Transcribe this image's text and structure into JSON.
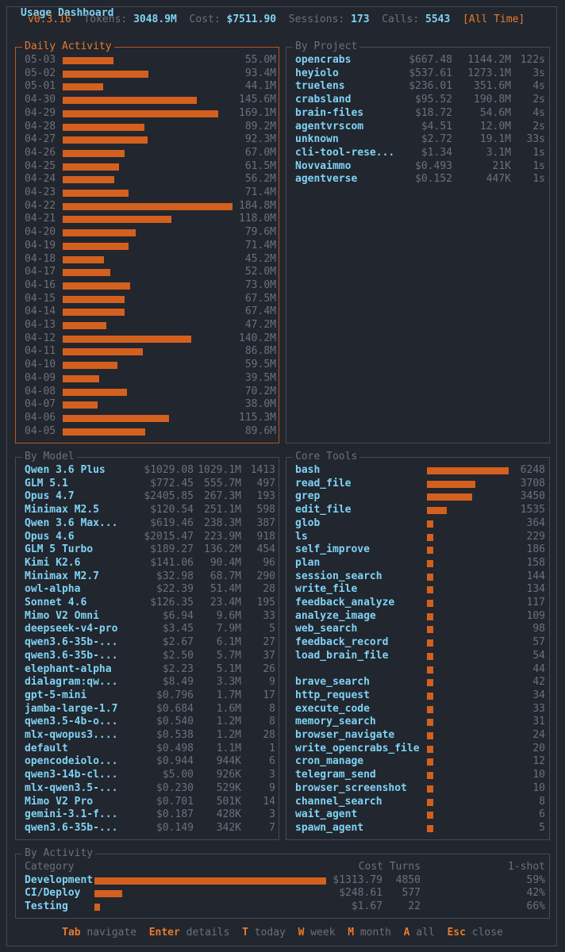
{
  "title": "Usage Dashboard",
  "stats": {
    "version": "v0.3.16",
    "tokens_label": "Tokens:",
    "tokens_value": "3048.9M",
    "cost_label": "Cost:",
    "cost_value": "$7511.90",
    "sessions_label": "Sessions:",
    "sessions_value": "173",
    "calls_label": "Calls:",
    "calls_value": "5543",
    "range": "[All Time]"
  },
  "daily": {
    "title": "Daily Activity",
    "rows": [
      {
        "date": "05-03",
        "value": "55.0M",
        "tokens_m": 55.0
      },
      {
        "date": "05-02",
        "value": "93.4M",
        "tokens_m": 93.4
      },
      {
        "date": "05-01",
        "value": "44.1M",
        "tokens_m": 44.1
      },
      {
        "date": "04-30",
        "value": "145.6M",
        "tokens_m": 145.6
      },
      {
        "date": "04-29",
        "value": "169.1M",
        "tokens_m": 169.1
      },
      {
        "date": "04-28",
        "value": "89.2M",
        "tokens_m": 89.2
      },
      {
        "date": "04-27",
        "value": "92.3M",
        "tokens_m": 92.3
      },
      {
        "date": "04-26",
        "value": "67.0M",
        "tokens_m": 67.0
      },
      {
        "date": "04-25",
        "value": "61.5M",
        "tokens_m": 61.5
      },
      {
        "date": "04-24",
        "value": "56.2M",
        "tokens_m": 56.2
      },
      {
        "date": "04-23",
        "value": "71.4M",
        "tokens_m": 71.4
      },
      {
        "date": "04-22",
        "value": "184.8M",
        "tokens_m": 184.8
      },
      {
        "date": "04-21",
        "value": "118.0M",
        "tokens_m": 118.0
      },
      {
        "date": "04-20",
        "value": "79.6M",
        "tokens_m": 79.6
      },
      {
        "date": "04-19",
        "value": "71.4M",
        "tokens_m": 71.4
      },
      {
        "date": "04-18",
        "value": "45.2M",
        "tokens_m": 45.2
      },
      {
        "date": "04-17",
        "value": "52.0M",
        "tokens_m": 52.0
      },
      {
        "date": "04-16",
        "value": "73.0M",
        "tokens_m": 73.0
      },
      {
        "date": "04-15",
        "value": "67.5M",
        "tokens_m": 67.5
      },
      {
        "date": "04-14",
        "value": "67.4M",
        "tokens_m": 67.4
      },
      {
        "date": "04-13",
        "value": "47.2M",
        "tokens_m": 47.2
      },
      {
        "date": "04-12",
        "value": "140.2M",
        "tokens_m": 140.2
      },
      {
        "date": "04-11",
        "value": "86.8M",
        "tokens_m": 86.8
      },
      {
        "date": "04-10",
        "value": "59.5M",
        "tokens_m": 59.5
      },
      {
        "date": "04-09",
        "value": "39.5M",
        "tokens_m": 39.5
      },
      {
        "date": "04-08",
        "value": "70.2M",
        "tokens_m": 70.2
      },
      {
        "date": "04-07",
        "value": "38.0M",
        "tokens_m": 38.0
      },
      {
        "date": "04-06",
        "value": "115.3M",
        "tokens_m": 115.3
      },
      {
        "date": "04-05",
        "value": "89.6M",
        "tokens_m": 89.6
      }
    ]
  },
  "projects": {
    "title": "By Project",
    "rows": [
      {
        "name": "opencrabs",
        "cost": "$667.48",
        "tokens": "1144.2M",
        "time": "122s"
      },
      {
        "name": "heyiolo",
        "cost": "$537.61",
        "tokens": "1273.1M",
        "time": "3s"
      },
      {
        "name": "truelens",
        "cost": "$236.01",
        "tokens": "351.6M",
        "time": "4s"
      },
      {
        "name": "crabsland",
        "cost": "$95.52",
        "tokens": "190.8M",
        "time": "2s"
      },
      {
        "name": "brain-files",
        "cost": "$18.72",
        "tokens": "54.6M",
        "time": "4s"
      },
      {
        "name": "agentvrscom",
        "cost": "$4.51",
        "tokens": "12.0M",
        "time": "2s"
      },
      {
        "name": "unknown",
        "cost": "$2.72",
        "tokens": "19.1M",
        "time": "33s"
      },
      {
        "name": "cli-tool-rese...",
        "cost": "$1.34",
        "tokens": "3.1M",
        "time": "1s"
      },
      {
        "name": "Novvaimmo",
        "cost": "$0.493",
        "tokens": "21K",
        "time": "1s"
      },
      {
        "name": "agentverse",
        "cost": "$0.152",
        "tokens": "447K",
        "time": "1s"
      }
    ]
  },
  "models": {
    "title": "By Model",
    "rows": [
      {
        "name": "Qwen 3.6 Plus",
        "cost": "$1029.08",
        "tokens": "1029.1M",
        "calls": "1413"
      },
      {
        "name": "GLM 5.1",
        "cost": "$772.45",
        "tokens": "555.7M",
        "calls": "497"
      },
      {
        "name": "Opus 4.7",
        "cost": "$2405.85",
        "tokens": "267.3M",
        "calls": "193"
      },
      {
        "name": "Minimax M2.5",
        "cost": "$120.54",
        "tokens": "251.1M",
        "calls": "598"
      },
      {
        "name": "Qwen 3.6 Max...",
        "cost": "$619.46",
        "tokens": "238.3M",
        "calls": "387"
      },
      {
        "name": "Opus 4.6",
        "cost": "$2015.47",
        "tokens": "223.9M",
        "calls": "918"
      },
      {
        "name": "GLM 5 Turbo",
        "cost": "$189.27",
        "tokens": "136.2M",
        "calls": "454"
      },
      {
        "name": "Kimi K2.6",
        "cost": "$141.06",
        "tokens": "90.4M",
        "calls": "96"
      },
      {
        "name": "Minimax M2.7",
        "cost": "$32.98",
        "tokens": "68.7M",
        "calls": "290"
      },
      {
        "name": "owl-alpha",
        "cost": "$22.39",
        "tokens": "51.4M",
        "calls": "28"
      },
      {
        "name": "Sonnet 4.6",
        "cost": "$126.35",
        "tokens": "23.4M",
        "calls": "195"
      },
      {
        "name": "Mimo V2 Omni",
        "cost": "$6.94",
        "tokens": "9.6M",
        "calls": "33"
      },
      {
        "name": "deepseek-v4-pro",
        "cost": "$3.45",
        "tokens": "7.9M",
        "calls": "5"
      },
      {
        "name": "qwen3.6-35b-...",
        "cost": "$2.67",
        "tokens": "6.1M",
        "calls": "27"
      },
      {
        "name": "qwen3.6-35b-...",
        "cost": "$2.50",
        "tokens": "5.7M",
        "calls": "37"
      },
      {
        "name": "elephant-alpha",
        "cost": "$2.23",
        "tokens": "5.1M",
        "calls": "26"
      },
      {
        "name": "dialagram:qw...",
        "cost": "$8.49",
        "tokens": "3.3M",
        "calls": "9"
      },
      {
        "name": "gpt-5-mini",
        "cost": "$0.796",
        "tokens": "1.7M",
        "calls": "17"
      },
      {
        "name": "jamba-large-1.7",
        "cost": "$0.684",
        "tokens": "1.6M",
        "calls": "8"
      },
      {
        "name": "qwen3.5-4b-o...",
        "cost": "$0.540",
        "tokens": "1.2M",
        "calls": "8"
      },
      {
        "name": "mlx-qwopus3....",
        "cost": "$0.538",
        "tokens": "1.2M",
        "calls": "28"
      },
      {
        "name": "default",
        "cost": "$0.498",
        "tokens": "1.1M",
        "calls": "1"
      },
      {
        "name": "opencodeiolo...",
        "cost": "$0.944",
        "tokens": "944K",
        "calls": "6"
      },
      {
        "name": "qwen3-14b-cl...",
        "cost": "$5.00",
        "tokens": "926K",
        "calls": "3"
      },
      {
        "name": "mlx-qwen3.5-...",
        "cost": "$0.230",
        "tokens": "529K",
        "calls": "9"
      },
      {
        "name": "Mimo V2 Pro",
        "cost": "$0.701",
        "tokens": "501K",
        "calls": "14"
      },
      {
        "name": "gemini-3.1-f...",
        "cost": "$0.187",
        "tokens": "428K",
        "calls": "3"
      },
      {
        "name": "qwen3.6-35b-...",
        "cost": "$0.149",
        "tokens": "342K",
        "calls": "7"
      }
    ]
  },
  "tools": {
    "title": "Core Tools",
    "rows": [
      {
        "name": "bash",
        "count": "6248",
        "n": 6248
      },
      {
        "name": "read_file",
        "count": "3708",
        "n": 3708
      },
      {
        "name": "grep",
        "count": "3450",
        "n": 3450
      },
      {
        "name": "edit_file",
        "count": "1535",
        "n": 1535
      },
      {
        "name": "glob",
        "count": "364",
        "n": 364
      },
      {
        "name": "ls",
        "count": "229",
        "n": 229
      },
      {
        "name": "self_improve",
        "count": "186",
        "n": 186
      },
      {
        "name": "plan",
        "count": "158",
        "n": 158
      },
      {
        "name": "session_search",
        "count": "144",
        "n": 144
      },
      {
        "name": "write_file",
        "count": "134",
        "n": 134
      },
      {
        "name": "feedback_analyze",
        "count": "117",
        "n": 117
      },
      {
        "name": "analyze_image",
        "count": "109",
        "n": 109
      },
      {
        "name": "web_search",
        "count": "98",
        "n": 98
      },
      {
        "name": "feedback_record",
        "count": "57",
        "n": 57
      },
      {
        "name": "load_brain_file",
        "count": "54",
        "n": 54
      },
      {
        "name": "",
        "count": "44",
        "n": 44
      },
      {
        "name": "brave_search",
        "count": "42",
        "n": 42
      },
      {
        "name": "http_request",
        "count": "34",
        "n": 34
      },
      {
        "name": "execute_code",
        "count": "33",
        "n": 33
      },
      {
        "name": "memory_search",
        "count": "31",
        "n": 31
      },
      {
        "name": "browser_navigate",
        "count": "24",
        "n": 24
      },
      {
        "name": "write_opencrabs_file",
        "count": "20",
        "n": 20
      },
      {
        "name": "cron_manage",
        "count": "12",
        "n": 12
      },
      {
        "name": "telegram_send",
        "count": "10",
        "n": 10
      },
      {
        "name": "browser_screenshot",
        "count": "10",
        "n": 10
      },
      {
        "name": "channel_search",
        "count": "8",
        "n": 8
      },
      {
        "name": "wait_agent",
        "count": "6",
        "n": 6
      },
      {
        "name": "spawn_agent",
        "count": "5",
        "n": 5
      }
    ]
  },
  "activity": {
    "title": "By Activity",
    "headers": {
      "category": "Category",
      "cost": "Cost",
      "turns": "Turns",
      "oneshot": "1-shot"
    },
    "rows": [
      {
        "name": "Development",
        "cost": "$1313.79",
        "turns": "4850",
        "oneshot": "59%",
        "n": 4850
      },
      {
        "name": "CI/Deploy",
        "cost": "$248.61",
        "turns": "577",
        "oneshot": "42%",
        "n": 577
      },
      {
        "name": "Testing",
        "cost": "$1.67",
        "turns": "22",
        "oneshot": "66%",
        "n": 22
      }
    ]
  },
  "footer": [
    {
      "key": "Tab",
      "label": "navigate"
    },
    {
      "key": "Enter",
      "label": "details"
    },
    {
      "key": "T",
      "label": "today"
    },
    {
      "key": "W",
      "label": "week"
    },
    {
      "key": "M",
      "label": "month"
    },
    {
      "key": "A",
      "label": "all"
    },
    {
      "key": "Esc",
      "label": "close"
    }
  ]
}
